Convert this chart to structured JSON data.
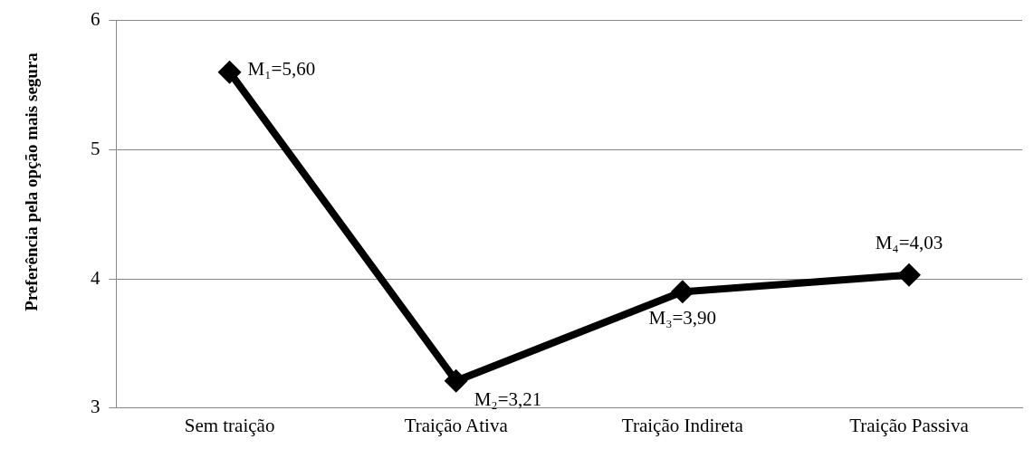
{
  "chart_data": {
    "type": "line",
    "ylabel": "Preferência pela opção mais segura",
    "categories": [
      "Sem traição",
      "Traição Ativa",
      "Traição Indireta",
      "Traição Passiva"
    ],
    "series": [
      {
        "color": "#000000",
        "values": [
          5.6,
          3.21,
          3.9,
          4.03
        ],
        "value_labels": [
          "M₁=5,60",
          "M₂=3,21",
          "M₃=3,90",
          "M₄=4,03"
        ]
      }
    ],
    "ylim": [
      3,
      6
    ],
    "yticks": [
      3,
      4,
      5,
      6
    ],
    "grid": "y",
    "legend": false,
    "marker": "diamond",
    "line_style": "solid"
  }
}
